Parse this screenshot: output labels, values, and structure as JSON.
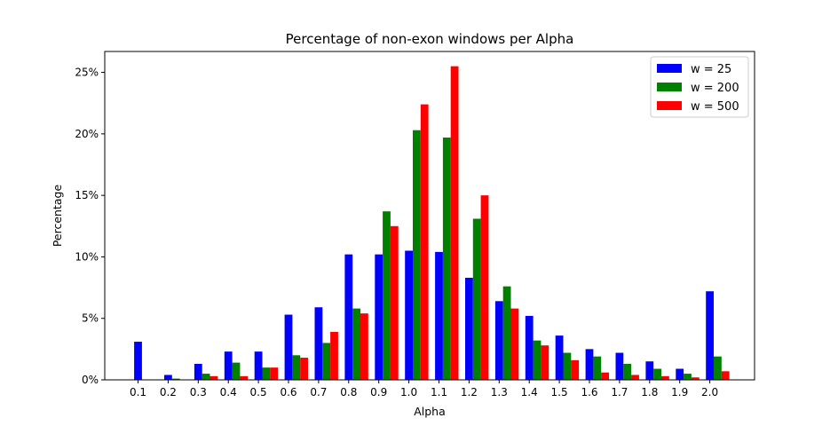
{
  "chart_data": {
    "type": "bar",
    "title": "Percentage of non-exon windows per Alpha",
    "xlabel": "Alpha",
    "ylabel": "Percentage",
    "categories": [
      "0.1",
      "0.2",
      "0.3",
      "0.4",
      "0.5",
      "0.6",
      "0.7",
      "0.8",
      "0.9",
      "1.0",
      "1.1",
      "1.2",
      "1.3",
      "1.4",
      "1.5",
      "1.6",
      "1.7",
      "1.8",
      "1.9",
      "2.0"
    ],
    "ylim": [
      0,
      26.7
    ],
    "yticks": [
      0,
      5,
      10,
      15,
      20,
      25
    ],
    "ytick_labels": [
      "0%",
      "5%",
      "10%",
      "15%",
      "20%",
      "25%"
    ],
    "legend_position": "top-right",
    "grid": false,
    "series": [
      {
        "name": "w = 25",
        "color": "#0000ff",
        "values": [
          3.1,
          0.4,
          1.3,
          2.3,
          2.3,
          5.3,
          5.9,
          10.2,
          10.2,
          10.5,
          10.4,
          8.3,
          6.4,
          5.2,
          3.6,
          2.5,
          2.2,
          1.5,
          0.9,
          7.2
        ]
      },
      {
        "name": "w = 200",
        "color": "#008000",
        "values": [
          0.0,
          0.1,
          0.5,
          1.4,
          1.0,
          2.0,
          3.0,
          5.8,
          13.7,
          20.3,
          19.7,
          13.1,
          7.6,
          3.2,
          2.2,
          1.9,
          1.3,
          0.9,
          0.5,
          1.9
        ]
      },
      {
        "name": "w = 500",
        "color": "#ff0000",
        "values": [
          0.0,
          0.0,
          0.3,
          0.3,
          1.0,
          1.8,
          3.9,
          5.4,
          12.5,
          22.4,
          25.5,
          15.0,
          5.8,
          2.8,
          1.6,
          0.6,
          0.4,
          0.3,
          0.2,
          0.7
        ]
      }
    ]
  }
}
